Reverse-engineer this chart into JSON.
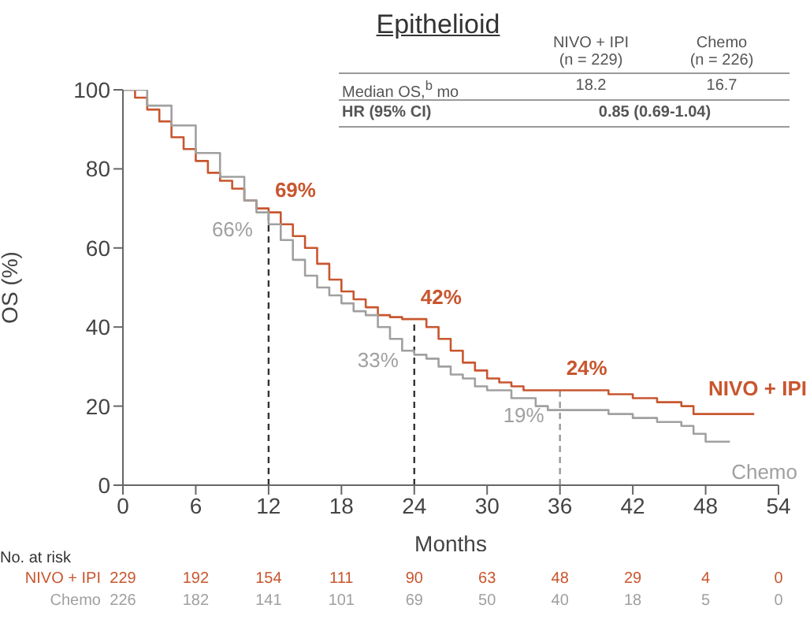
{
  "chart_data": {
    "type": "step",
    "title": "Epithelioid",
    "xlabel": "Months",
    "ylabel": "OS (%)",
    "xlim": [
      0,
      54
    ],
    "xticks": [
      0,
      6,
      12,
      18,
      24,
      30,
      36,
      42,
      48,
      54
    ],
    "ylim": [
      0,
      100
    ],
    "yticks": [
      0,
      20,
      40,
      60,
      80,
      100
    ],
    "series": [
      {
        "name": "NIVO + IPI",
        "color": "#c8562f",
        "x": [
          0,
          1,
          2,
          3,
          4,
          5,
          6,
          7,
          8,
          9,
          10,
          11,
          12,
          13,
          14,
          15,
          16,
          17,
          18,
          19,
          20,
          21,
          22,
          23,
          24,
          25,
          26,
          27,
          28,
          29,
          30,
          31,
          32,
          33,
          36,
          40,
          42,
          44,
          46,
          47,
          52
        ],
        "values": [
          100,
          98,
          95,
          92,
          88,
          85,
          82,
          79,
          77,
          75,
          72,
          70,
          69,
          66,
          63,
          60,
          56,
          52,
          49,
          47,
          45,
          43,
          42.5,
          42,
          42,
          40,
          37,
          34,
          31,
          29,
          27,
          26,
          25,
          24,
          24,
          23,
          22,
          21,
          20,
          18,
          18
        ]
      },
      {
        "name": "Chemo",
        "color": "#a0a0a0",
        "x": [
          0,
          2,
          4,
          6,
          8,
          10,
          11,
          12,
          13,
          14,
          15,
          16,
          17,
          18,
          19,
          20,
          21,
          22,
          23,
          24,
          25,
          26,
          27,
          28,
          29,
          30,
          32,
          34,
          35,
          36,
          38,
          40,
          42,
          44,
          46,
          47,
          48,
          50
        ],
        "values": [
          100,
          96,
          91,
          84,
          78,
          72,
          69,
          66,
          62,
          57,
          53,
          50,
          48,
          46,
          44,
          43,
          40,
          37,
          34,
          33,
          32,
          30,
          28,
          27,
          25,
          24,
          22,
          20,
          19,
          19,
          19,
          18,
          17,
          16,
          15,
          13,
          11,
          11
        ]
      }
    ],
    "ref_lines": [
      {
        "axis": "x",
        "value": 12,
        "color": "#333333",
        "line_style": "dashed"
      },
      {
        "axis": "x",
        "value": 24,
        "color": "#333333",
        "line_style": "dashed"
      },
      {
        "axis": "x",
        "value": 36,
        "color": "#999999",
        "line_style": "dashed"
      }
    ],
    "annotations": [
      {
        "text": "69%",
        "x": 12,
        "y": 69
      },
      {
        "text": "66%",
        "x": 12,
        "y": 66
      },
      {
        "text": "42%",
        "x": 24,
        "y": 42
      },
      {
        "text": "33%",
        "x": 24,
        "y": 33
      },
      {
        "text": "24%",
        "x": 36,
        "y": 24
      },
      {
        "text": "19%",
        "x": 36,
        "y": 19
      },
      "NIVO + IPI",
      "(n = 229)",
      "Chemo",
      "(n = 226)",
      "Median OS,$^{b}$ mo",
      "18.2",
      "16.7",
      "HR (95% CI)",
      "0.85 (0.69-1.04)",
      "No. at risk",
      "NIVO + IPI",
      "229",
      "192",
      "154",
      "111",
      "90",
      "63",
      "48",
      "29",
      "4",
      "0",
      "Chemo",
      "226",
      "182",
      "141",
      "101",
      "69",
      "50",
      "40",
      "18",
      "5",
      "0"
    ]
  }
}
